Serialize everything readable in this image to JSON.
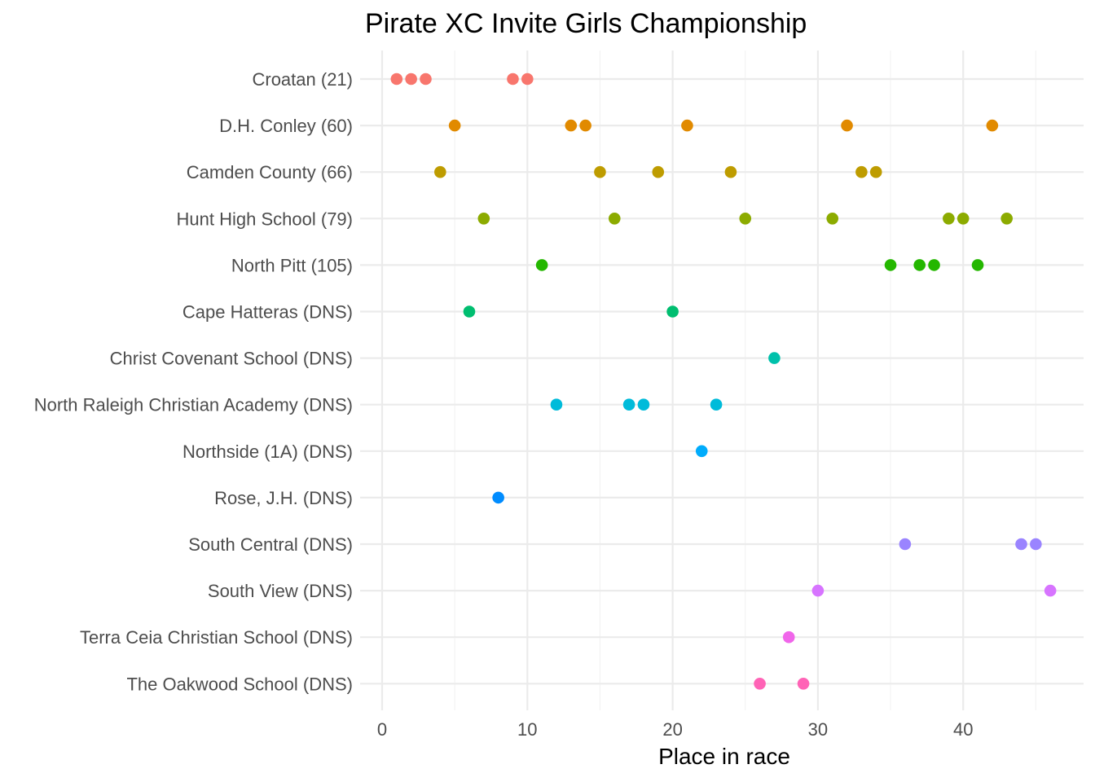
{
  "chart_data": {
    "type": "scatter",
    "title": "Pirate XC Invite Girls Championship",
    "xlabel": "Place in race",
    "ylabel": "",
    "xlim": [
      0,
      46
    ],
    "xticks": [
      0,
      10,
      20,
      30,
      40
    ],
    "grid": true,
    "legend": "none",
    "categories": [
      "Croatan (21)",
      "D.H. Conley (60)",
      "Camden County (66)",
      "Hunt High School (79)",
      "North Pitt (105)",
      "Cape Hatteras (DNS)",
      "Christ Covenant School (DNS)",
      "North Raleigh Christian Academy (DNS)",
      "Northside (1A) (DNS)",
      "Rose, J.H. (DNS)",
      "South Central (DNS)",
      "South View (DNS)",
      "Terra Ceia Christian School (DNS)",
      "The Oakwood School (DNS)"
    ],
    "series": [
      {
        "name": "Croatan (21)",
        "color": "#F8766D",
        "values": [
          1,
          2,
          3,
          9,
          10
        ]
      },
      {
        "name": "D.H. Conley (60)",
        "color": "#E18A00",
        "values": [
          5,
          13,
          14,
          21,
          32,
          42
        ]
      },
      {
        "name": "Camden County (66)",
        "color": "#BE9C00",
        "values": [
          4,
          15,
          19,
          24,
          33,
          34
        ]
      },
      {
        "name": "Hunt High School (79)",
        "color": "#8CAB00",
        "values": [
          7,
          16,
          25,
          31,
          39,
          40,
          43
        ]
      },
      {
        "name": "North Pitt (105)",
        "color": "#24B700",
        "values": [
          11,
          35,
          37,
          38,
          41
        ]
      },
      {
        "name": "Cape Hatteras (DNS)",
        "color": "#00BE70",
        "values": [
          6,
          20
        ]
      },
      {
        "name": "Christ Covenant School (DNS)",
        "color": "#00C1AB",
        "values": [
          27
        ]
      },
      {
        "name": "North Raleigh Christian Academy (DNS)",
        "color": "#00BBDA",
        "values": [
          12,
          17,
          18,
          23
        ]
      },
      {
        "name": "Northside (1A) (DNS)",
        "color": "#00ACFC",
        "values": [
          22
        ]
      },
      {
        "name": "Rose, J.H. (DNS)",
        "color": "#008CFF",
        "values": [
          8
        ]
      },
      {
        "name": "South Central (DNS)",
        "color": "#9A84FF",
        "values": [
          36,
          44,
          45
        ]
      },
      {
        "name": "South View (DNS)",
        "color": "#D774FF",
        "values": [
          30,
          46
        ]
      },
      {
        "name": "Terra Ceia Christian School (DNS)",
        "color": "#F066EA",
        "values": [
          28
        ]
      },
      {
        "name": "The Oakwood School (DNS)",
        "color": "#FF63B6",
        "values": [
          26,
          29
        ]
      }
    ]
  }
}
